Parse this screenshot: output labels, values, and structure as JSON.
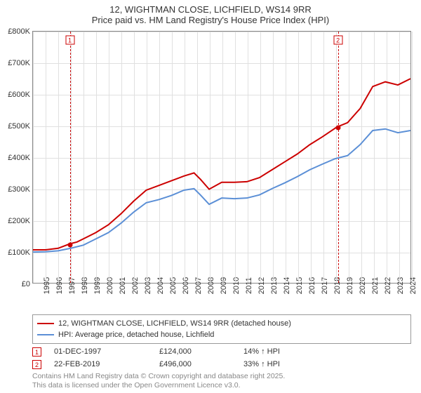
{
  "title": {
    "line1": "12, WIGHTMAN CLOSE, LICHFIELD, WS14 9RR",
    "line2": "Price paid vs. HM Land Registry's House Price Index (HPI)"
  },
  "chart": {
    "type": "line",
    "background_color": "#ffffff",
    "grid_color": "#e0e0e0",
    "axis_color": "#888888",
    "label_fontsize": 11,
    "x": {
      "min": 1995,
      "max": 2025,
      "tick_step": 1,
      "ticks": [
        1995,
        1996,
        1997,
        1998,
        1999,
        2000,
        2001,
        2002,
        2003,
        2004,
        2005,
        2006,
        2007,
        2008,
        2009,
        2010,
        2011,
        2012,
        2013,
        2014,
        2015,
        2016,
        2017,
        2018,
        2019,
        2020,
        2021,
        2022,
        2023,
        2024,
        2025
      ]
    },
    "y": {
      "min": 0,
      "max": 800000,
      "tick_step": 100000,
      "labels": [
        "£0",
        "£100K",
        "£200K",
        "£300K",
        "£400K",
        "£500K",
        "£600K",
        "£700K",
        "£800K"
      ]
    },
    "series": [
      {
        "name": "12, WIGHTMAN CLOSE, LICHFIELD, WS14 9RR (detached house)",
        "color": "#cc0000",
        "line_width": 2,
        "points": [
          [
            1995,
            105000
          ],
          [
            1996,
            105000
          ],
          [
            1997,
            110000
          ],
          [
            1997.92,
            124000
          ],
          [
            1998.5,
            130000
          ],
          [
            1999,
            140000
          ],
          [
            2000,
            160000
          ],
          [
            2001,
            185000
          ],
          [
            2002,
            220000
          ],
          [
            2003,
            260000
          ],
          [
            2004,
            295000
          ],
          [
            2005,
            310000
          ],
          [
            2006,
            325000
          ],
          [
            2007,
            340000
          ],
          [
            2007.8,
            350000
          ],
          [
            2008.3,
            330000
          ],
          [
            2009,
            298000
          ],
          [
            2010,
            320000
          ],
          [
            2011,
            320000
          ],
          [
            2012,
            322000
          ],
          [
            2013,
            335000
          ],
          [
            2014,
            360000
          ],
          [
            2015,
            385000
          ],
          [
            2016,
            410000
          ],
          [
            2017,
            440000
          ],
          [
            2018,
            465000
          ],
          [
            2019.15,
            496000
          ],
          [
            2020,
            510000
          ],
          [
            2021,
            555000
          ],
          [
            2022,
            625000
          ],
          [
            2023,
            640000
          ],
          [
            2024,
            630000
          ],
          [
            2025,
            650000
          ]
        ]
      },
      {
        "name": "HPI: Average price, detached house, Lichfield",
        "color": "#5b8fd6",
        "line_width": 2,
        "points": [
          [
            1995,
            98000
          ],
          [
            1996,
            99000
          ],
          [
            1997,
            102000
          ],
          [
            1998,
            110000
          ],
          [
            1999,
            120000
          ],
          [
            2000,
            140000
          ],
          [
            2001,
            160000
          ],
          [
            2002,
            190000
          ],
          [
            2003,
            225000
          ],
          [
            2004,
            255000
          ],
          [
            2005,
            265000
          ],
          [
            2006,
            278000
          ],
          [
            2007,
            295000
          ],
          [
            2007.8,
            300000
          ],
          [
            2008.3,
            280000
          ],
          [
            2009,
            250000
          ],
          [
            2010,
            270000
          ],
          [
            2011,
            268000
          ],
          [
            2012,
            270000
          ],
          [
            2013,
            280000
          ],
          [
            2014,
            300000
          ],
          [
            2015,
            318000
          ],
          [
            2016,
            338000
          ],
          [
            2017,
            360000
          ],
          [
            2018,
            378000
          ],
          [
            2019,
            395000
          ],
          [
            2020,
            405000
          ],
          [
            2021,
            440000
          ],
          [
            2022,
            485000
          ],
          [
            2023,
            490000
          ],
          [
            2024,
            478000
          ],
          [
            2025,
            485000
          ]
        ]
      }
    ],
    "markers": [
      {
        "id": "1",
        "year": 1997.92,
        "value": 124000
      },
      {
        "id": "2",
        "year": 2019.15,
        "value": 496000
      }
    ]
  },
  "legend": {
    "items": [
      {
        "label": "12, WIGHTMAN CLOSE, LICHFIELD, WS14 9RR (detached house)",
        "color": "#cc0000"
      },
      {
        "label": "HPI: Average price, detached house, Lichfield",
        "color": "#5b8fd6"
      }
    ]
  },
  "data_rows": [
    {
      "id": "1",
      "date": "01-DEC-1997",
      "price": "£124,000",
      "pct": "14% ↑ HPI"
    },
    {
      "id": "2",
      "date": "22-FEB-2019",
      "price": "£496,000",
      "pct": "33% ↑ HPI"
    }
  ],
  "footnote": {
    "line1": "Contains HM Land Registry data © Crown copyright and database right 2025.",
    "line2": "This data is licensed under the Open Government Licence v3.0."
  }
}
